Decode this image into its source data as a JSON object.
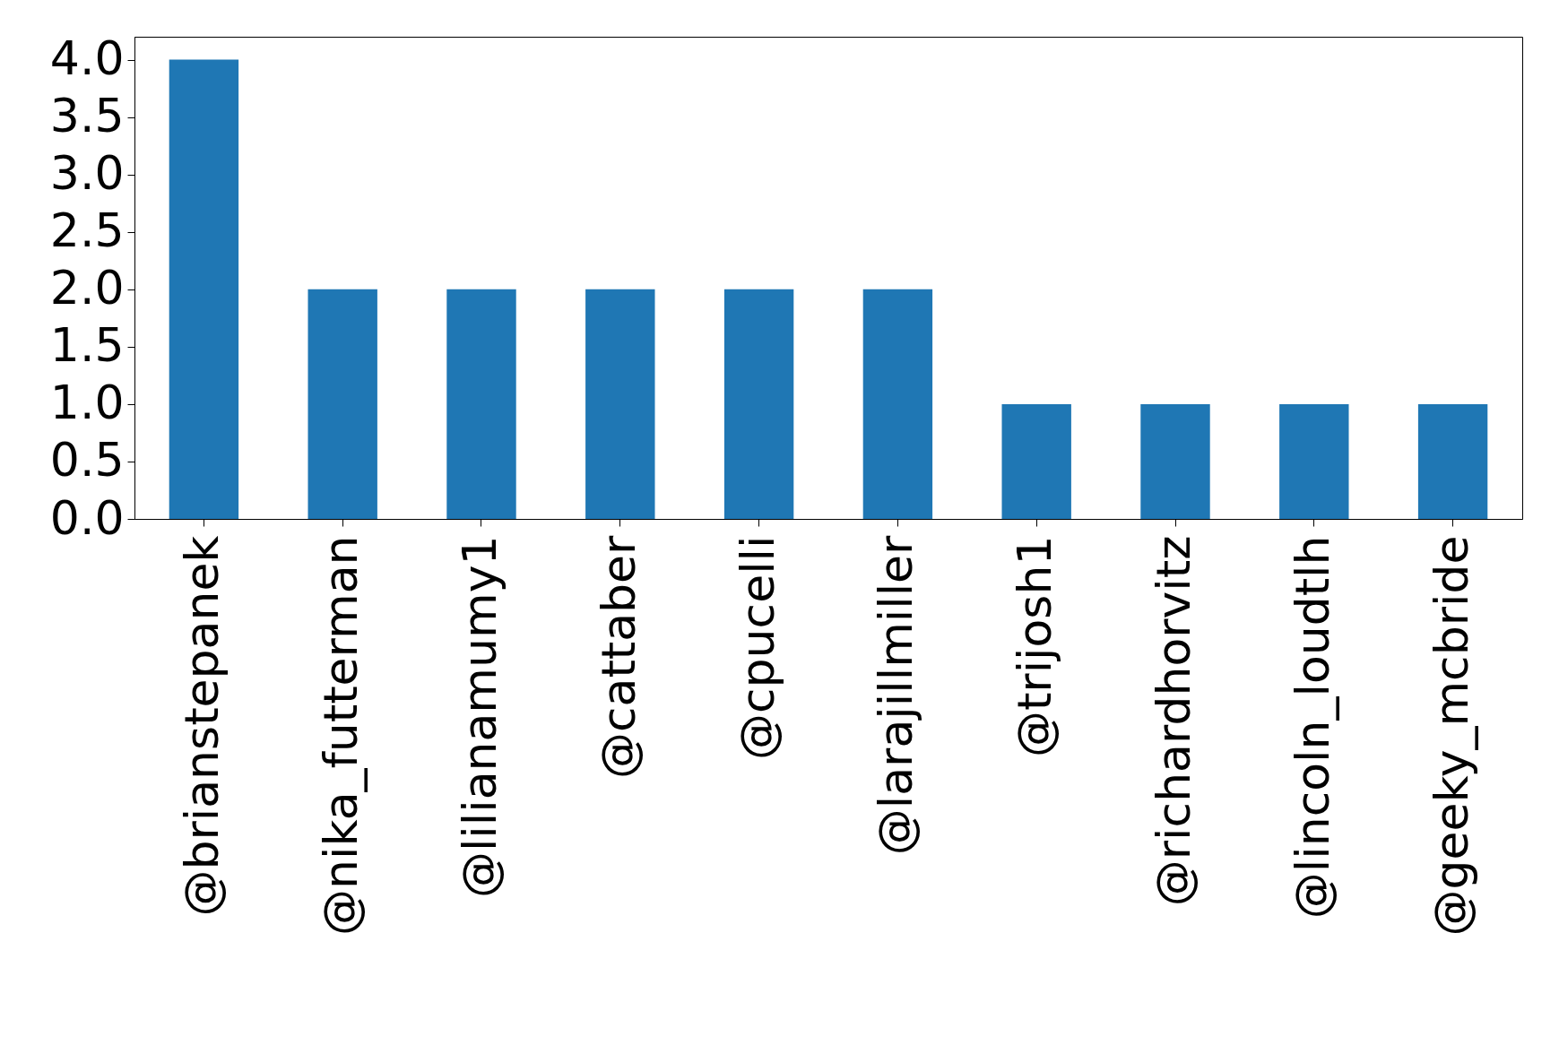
{
  "chart_data": {
    "type": "bar",
    "categories": [
      "@brianstepanek",
      "@nika_futterman",
      "@lilianamumy1",
      "@cattaber",
      "@cpucelli",
      "@larajillmiller",
      "@trijosh1",
      "@richardhorvitz",
      "@lincoln_loudtlh",
      "@geeky_mcbride"
    ],
    "values": [
      4,
      2,
      2,
      2,
      2,
      2,
      1,
      1,
      1,
      1
    ],
    "color": "#1f77b4",
    "ylim": [
      0,
      4.2
    ],
    "yticks": [
      {
        "value": 0,
        "label": "0.0"
      },
      {
        "value": 0.5,
        "label": "0.5"
      },
      {
        "value": 1,
        "label": "1.0"
      },
      {
        "value": 1.5,
        "label": "1.5"
      },
      {
        "value": 2,
        "label": "2.0"
      },
      {
        "value": 2.5,
        "label": "2.5"
      },
      {
        "value": 3,
        "label": "3.0"
      },
      {
        "value": 3.5,
        "label": "3.5"
      },
      {
        "value": 4,
        "label": "4.0"
      }
    ],
    "grid": false
  }
}
